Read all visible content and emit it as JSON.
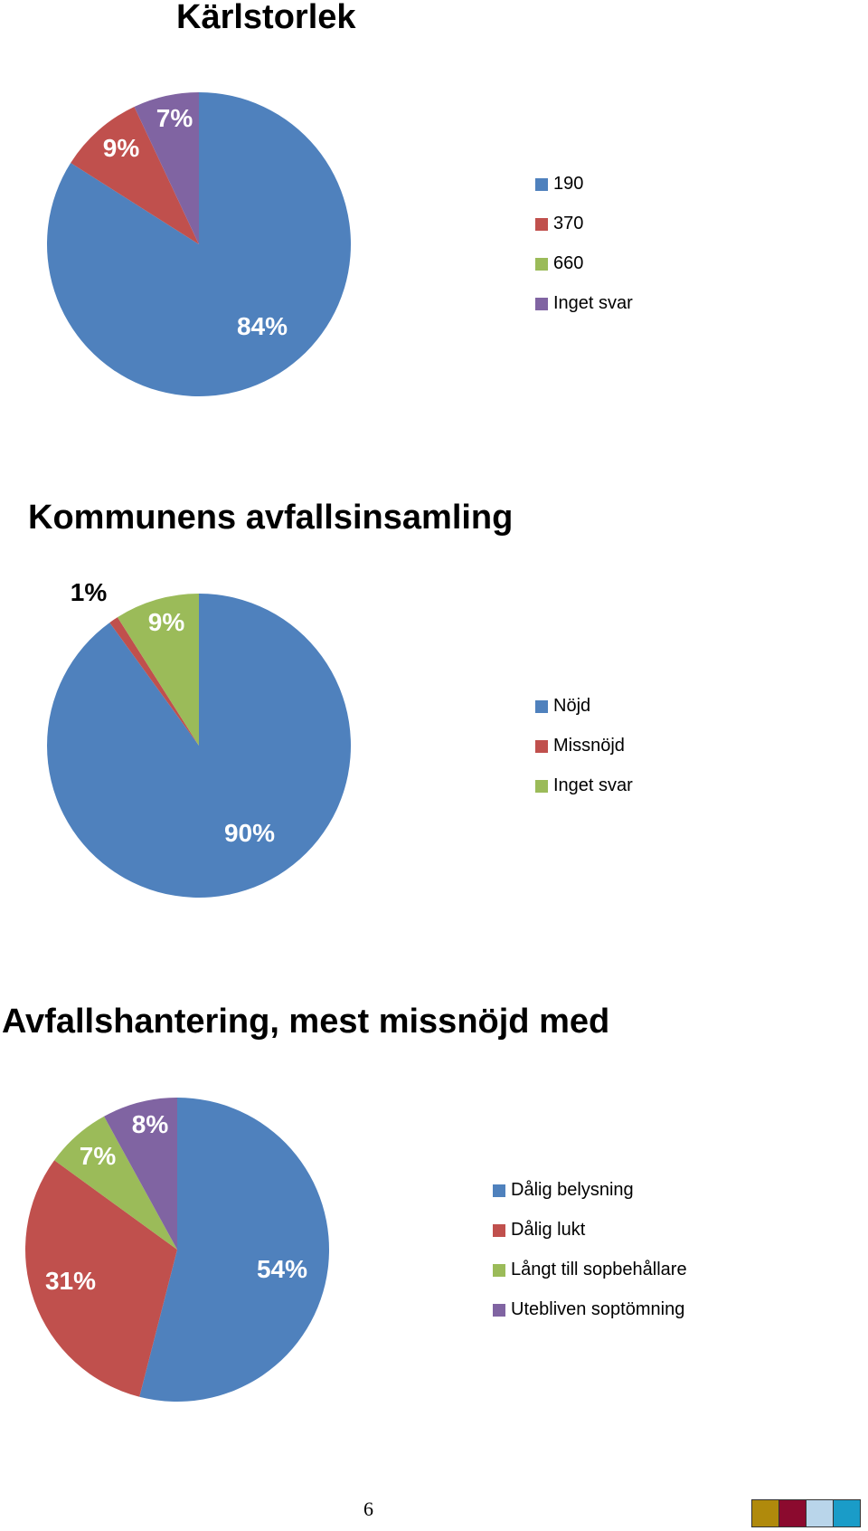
{
  "chart_data": [
    {
      "type": "pie",
      "title": "Kärlstorlek",
      "categories": [
        "190",
        "370",
        "660",
        "Inget svar"
      ],
      "values": [
        84,
        9,
        0,
        7
      ],
      "labels": [
        "84%",
        "9%",
        "",
        "7%"
      ],
      "colors": [
        "#4F81BD",
        "#C0504D",
        "#9BBB59",
        "#8064A2"
      ],
      "legend": "right"
    },
    {
      "type": "pie",
      "title": "Kommunens avfallsinsamling",
      "categories": [
        "Nöjd",
        "Missnöjd",
        "Inget svar"
      ],
      "values": [
        90,
        1,
        9
      ],
      "labels": [
        "90%",
        "1%",
        "9%"
      ],
      "colors": [
        "#4F81BD",
        "#C0504D",
        "#9BBB59"
      ],
      "legend": "right"
    },
    {
      "type": "pie",
      "title": "Avfallshantering, mest missnöjd med",
      "categories": [
        "Dålig belysning",
        "Dålig lukt",
        "Långt till sopbehållare",
        "Utebliven soptömning"
      ],
      "values": [
        54,
        31,
        7,
        8
      ],
      "labels": [
        "54%",
        "31%",
        "7%",
        "8%"
      ],
      "colors": [
        "#4F81BD",
        "#C0504D",
        "#9BBB59",
        "#8064A2"
      ],
      "legend": "right"
    }
  ],
  "footer": {
    "page_number": "6",
    "color_bar": [
      "#B08A0C",
      "#8B0A2E",
      "#B9D5EA",
      "#1A9CC8"
    ]
  }
}
